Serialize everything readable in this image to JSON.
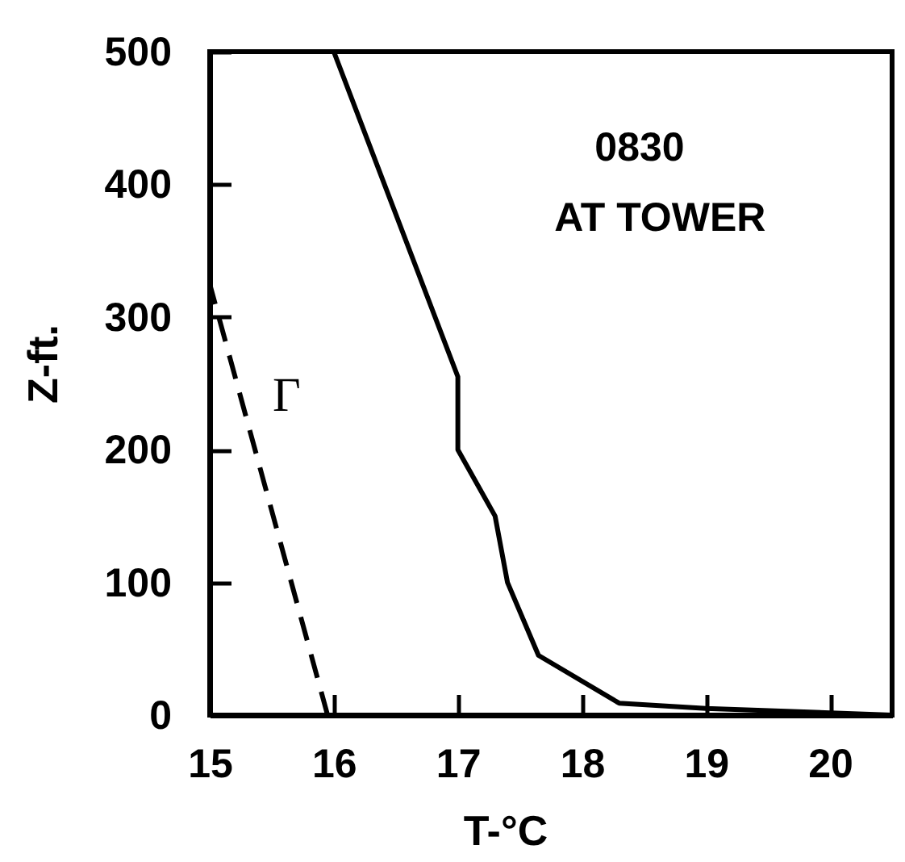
{
  "chart_data": {
    "type": "line",
    "xlabel": "T-°C",
    "ylabel": "Z-ft.",
    "annotations": [
      "0830",
      "AT TOWER"
    ],
    "xlim": [
      15,
      20.5
    ],
    "ylim": [
      0,
      500
    ],
    "xticks": [
      15,
      16,
      17,
      18,
      19,
      20
    ],
    "yticks": [
      0,
      100,
      200,
      300,
      400,
      500
    ],
    "series": [
      {
        "color": "#000000",
        "x": [
          16.0,
          17.0,
          17.0,
          17.3,
          17.4,
          17.65,
          18.3,
          19.0,
          20.5
        ],
        "values": [
          500,
          255,
          200,
          150,
          100,
          45,
          9,
          5,
          0
        ]
      },
      {
        "name": "Γ",
        "color": "#000000",
        "line_style": "dashed",
        "x": [
          15.95,
          15.0
        ],
        "values": [
          0,
          325
        ]
      }
    ]
  }
}
